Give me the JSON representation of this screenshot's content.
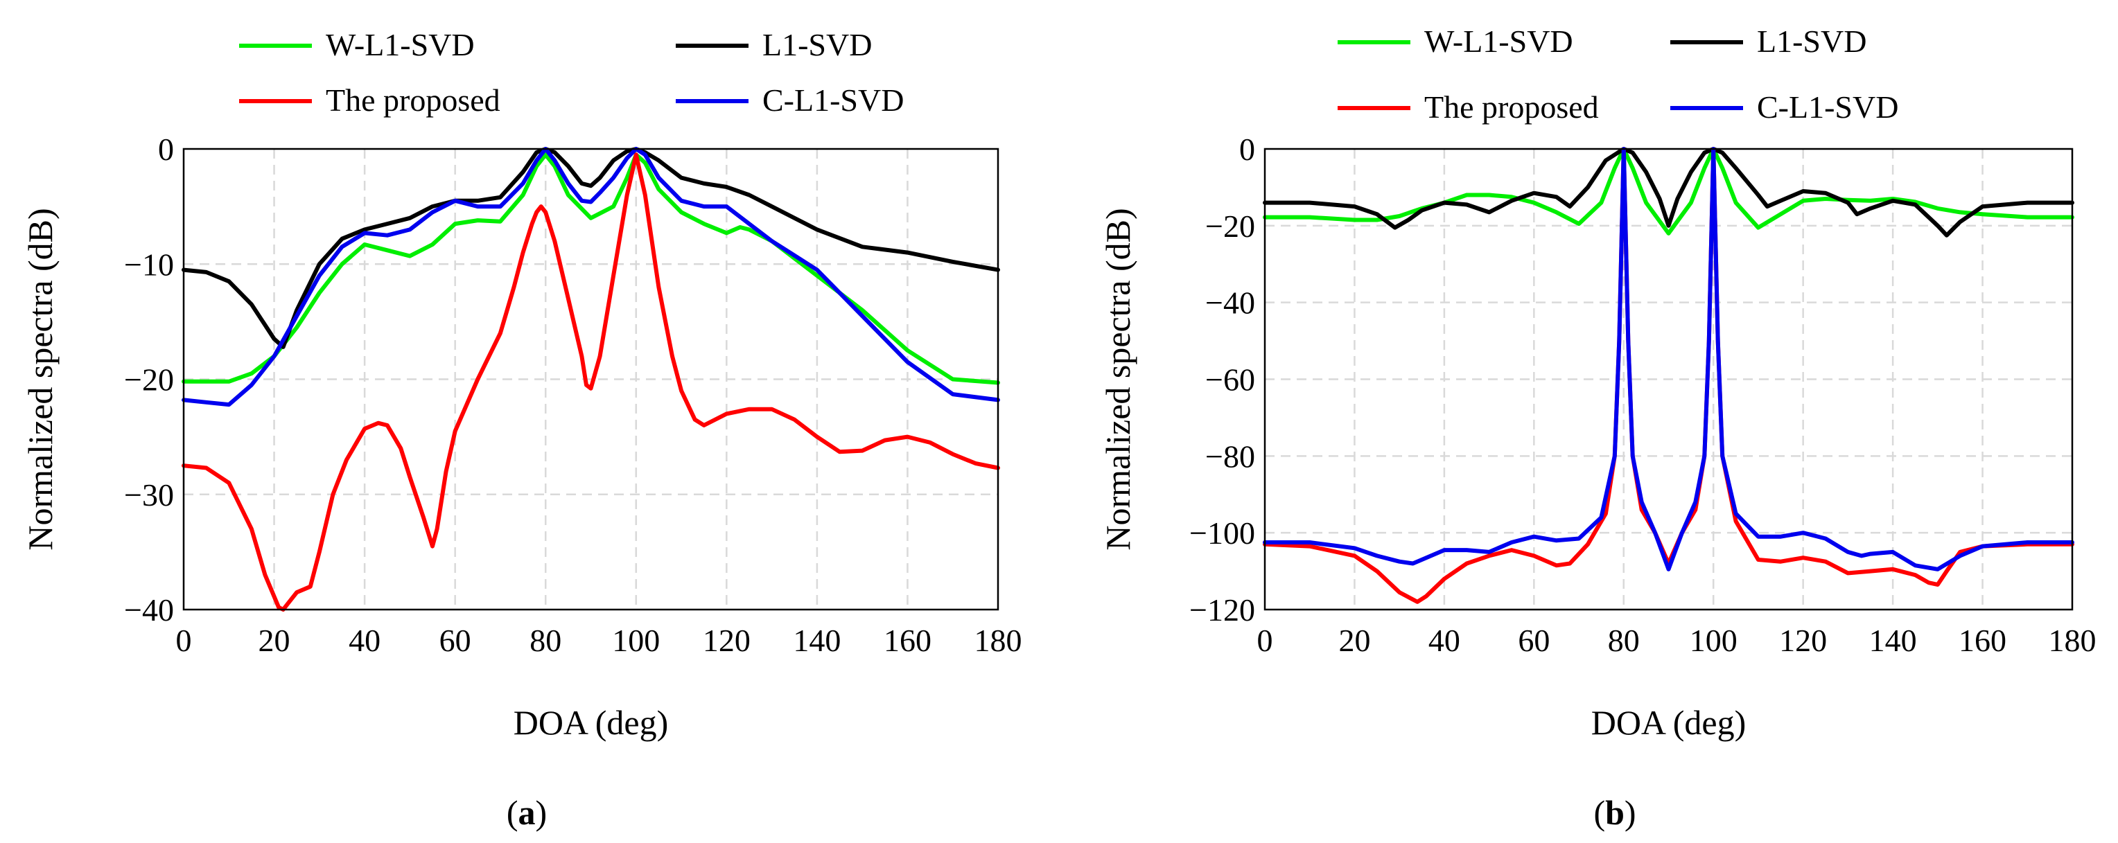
{
  "chart_data": [
    {
      "type": "line",
      "panel": "a",
      "caption_paren_open": "(",
      "caption_letter": "a",
      "caption_paren_close": ")",
      "xlabel": "DOA (deg)",
      "ylabel": "Normalized spectra (dB)",
      "xlim": [
        0,
        180
      ],
      "ylim": [
        -40,
        0
      ],
      "xticks": [
        0,
        20,
        40,
        60,
        80,
        100,
        120,
        140,
        160,
        180
      ],
      "yticks": [
        0,
        -10,
        -20,
        -30,
        -40
      ],
      "ytick_labels": [
        "0",
        "−10",
        "−20",
        "−30",
        "−40"
      ],
      "grid": true,
      "legend": "top, two columns",
      "series": [
        {
          "name": "W-L1-SVD",
          "color": "#00ee00",
          "x": [
            0,
            10,
            15,
            20,
            25,
            30,
            35,
            40,
            45,
            50,
            55,
            60,
            65,
            70,
            75,
            78,
            80,
            82,
            85,
            90,
            95,
            98,
            100,
            102,
            105,
            110,
            115,
            120,
            123,
            125,
            130,
            140,
            150,
            160,
            170,
            180
          ],
          "y": [
            -20.2,
            -20.2,
            -19.5,
            -18,
            -15.5,
            -12.5,
            -10,
            -8.3,
            -8.8,
            -9.3,
            -8.3,
            -6.5,
            -6.2,
            -6.3,
            -4,
            -1.5,
            -0.5,
            -1.5,
            -4,
            -6,
            -5,
            -2.5,
            -0.5,
            -1.2,
            -3.5,
            -5.5,
            -6.5,
            -7.3,
            -6.8,
            -7,
            -8,
            -11,
            -14,
            -17.5,
            -20,
            -20.3
          ]
        },
        {
          "name": "L1-SVD",
          "color": "#000000",
          "x": [
            0,
            5,
            10,
            15,
            20,
            22,
            25,
            30,
            35,
            40,
            45,
            50,
            55,
            60,
            65,
            70,
            75,
            78,
            80,
            82,
            85,
            88,
            90,
            92,
            95,
            98,
            100,
            102,
            105,
            110,
            115,
            120,
            125,
            130,
            140,
            150,
            160,
            170,
            180
          ],
          "y": [
            -10.5,
            -10.7,
            -11.5,
            -13.5,
            -16.5,
            -17.2,
            -14,
            -10,
            -7.8,
            -7,
            -6.5,
            -6,
            -5,
            -4.5,
            -4.5,
            -4.2,
            -2,
            -0.3,
            0,
            -0.3,
            -1.5,
            -3,
            -3.2,
            -2.5,
            -1,
            -0.2,
            0,
            -0.3,
            -1,
            -2.5,
            -3,
            -3.3,
            -4,
            -5,
            -7,
            -8.5,
            -9,
            -9.8,
            -10.5
          ]
        },
        {
          "name": "The proposed",
          "color": "#ff0000",
          "x": [
            0,
            5,
            10,
            15,
            18,
            21,
            22,
            23,
            25,
            28,
            30,
            33,
            36,
            40,
            43,
            45,
            48,
            50,
            53,
            55,
            56,
            58,
            60,
            65,
            70,
            73,
            75,
            77,
            78,
            79,
            80,
            82,
            85,
            88,
            89,
            90,
            92,
            95,
            98,
            100,
            102,
            105,
            108,
            110,
            113,
            115,
            120,
            125,
            130,
            135,
            140,
            145,
            150,
            155,
            160,
            165,
            170,
            175,
            180
          ],
          "y": [
            -27.5,
            -27.7,
            -29,
            -33,
            -37,
            -39.8,
            -40,
            -39.5,
            -38.5,
            -38,
            -35,
            -30,
            -27,
            -24.3,
            -23.8,
            -24,
            -26,
            -28.5,
            -32,
            -34.5,
            -33,
            -28,
            -24.5,
            -20,
            -16,
            -12,
            -9,
            -6.5,
            -5.5,
            -5,
            -5.5,
            -8,
            -13,
            -18,
            -20.5,
            -20.8,
            -18,
            -11,
            -4,
            -0.5,
            -4,
            -12,
            -18,
            -21,
            -23.5,
            -24,
            -23,
            -22.6,
            -22.6,
            -23.5,
            -25,
            -26.3,
            -26.2,
            -25.3,
            -25,
            -25.5,
            -26.5,
            -27.3,
            -27.7
          ]
        },
        {
          "name": "C-L1-SVD",
          "color": "#0000ee",
          "x": [
            0,
            5,
            10,
            15,
            20,
            25,
            30,
            35,
            40,
            45,
            50,
            55,
            60,
            65,
            70,
            75,
            78,
            80,
            82,
            85,
            88,
            90,
            92,
            95,
            98,
            100,
            102,
            105,
            110,
            115,
            120,
            125,
            130,
            140,
            150,
            160,
            170,
            180
          ],
          "y": [
            -21.8,
            -22,
            -22.2,
            -20.5,
            -18,
            -14.5,
            -11,
            -8.5,
            -7.3,
            -7.5,
            -7,
            -5.5,
            -4.5,
            -5,
            -5,
            -3,
            -1,
            0,
            -1,
            -3,
            -4.5,
            -4.6,
            -3.8,
            -2.5,
            -0.8,
            0,
            -0.5,
            -2.5,
            -4.5,
            -5,
            -5,
            -6.5,
            -8,
            -10.5,
            -14.5,
            -18.5,
            -21.3,
            -21.8
          ]
        }
      ]
    },
    {
      "type": "line",
      "panel": "b",
      "caption_paren_open": "(",
      "caption_letter": "b",
      "caption_paren_close": ")",
      "xlabel": "DOA (deg)",
      "ylabel": "Normalized spectra (dB)",
      "xlim": [
        0,
        180
      ],
      "ylim": [
        -120,
        0
      ],
      "xticks": [
        0,
        20,
        40,
        60,
        80,
        100,
        120,
        140,
        160,
        180
      ],
      "yticks": [
        0,
        -20,
        -40,
        -60,
        -80,
        -100,
        -120
      ],
      "ytick_labels": [
        "0",
        "−20",
        "−40",
        "−60",
        "−80",
        "−100",
        "−120"
      ],
      "grid": true,
      "legend": "top, two columns",
      "series": [
        {
          "name": "W-L1-SVD",
          "color": "#00ee00",
          "x": [
            0,
            10,
            20,
            25,
            30,
            35,
            40,
            45,
            50,
            55,
            60,
            65,
            70,
            75,
            78,
            80,
            82,
            85,
            90,
            95,
            98,
            100,
            102,
            105,
            110,
            115,
            120,
            125,
            130,
            135,
            140,
            145,
            150,
            155,
            160,
            170,
            180
          ],
          "y": [
            -17.8,
            -17.8,
            -18.5,
            -18.5,
            -17.5,
            -15.5,
            -14,
            -12,
            -12,
            -12.5,
            -14,
            -16.5,
            -19.5,
            -14,
            -5,
            0,
            -5,
            -14,
            -22,
            -14,
            -5,
            0,
            -5,
            -14,
            -20.5,
            -17,
            -13.5,
            -13,
            -13.3,
            -13.5,
            -13,
            -13.8,
            -15.5,
            -16.5,
            -17,
            -17.8,
            -17.8
          ]
        },
        {
          "name": "L1-SVD",
          "color": "#000000",
          "x": [
            0,
            10,
            20,
            25,
            29,
            32,
            35,
            40,
            45,
            50,
            55,
            60,
            65,
            68,
            72,
            76,
            80,
            82,
            85,
            88,
            90,
            92,
            95,
            98,
            100,
            102,
            105,
            110,
            112,
            115,
            120,
            125,
            130,
            132,
            135,
            140,
            145,
            150,
            152,
            155,
            160,
            170,
            180
          ],
          "y": [
            -14,
            -14,
            -15,
            -17,
            -20.5,
            -18.5,
            -16,
            -14,
            -14.5,
            -16.5,
            -13.5,
            -11.5,
            -12.5,
            -15,
            -10,
            -3,
            0,
            -1,
            -6,
            -13,
            -20,
            -13,
            -6,
            -1,
            0,
            -1,
            -5,
            -12,
            -15,
            -13.5,
            -11,
            -11.5,
            -14,
            -17,
            -15.5,
            -13.5,
            -14.5,
            -20,
            -22.5,
            -19,
            -15,
            -14,
            -14
          ]
        },
        {
          "name": "The proposed",
          "color": "#ff0000",
          "x": [
            0,
            10,
            20,
            25,
            30,
            34,
            36,
            40,
            45,
            50,
            55,
            60,
            65,
            68,
            72,
            76,
            78,
            79,
            80,
            81,
            82,
            84,
            87,
            90,
            93,
            96,
            98,
            99,
            100,
            101,
            102,
            105,
            110,
            115,
            120,
            125,
            130,
            135,
            140,
            145,
            148,
            150,
            152,
            155,
            160,
            170,
            180
          ],
          "y": [
            -103,
            -103.5,
            -106,
            -110,
            -115.5,
            -118,
            -116.5,
            -112,
            -108,
            -106,
            -104.5,
            -106,
            -108.5,
            -108,
            -103,
            -95,
            -80,
            -50,
            0,
            -50,
            -80,
            -94,
            -100,
            -108,
            -100,
            -94,
            -80,
            -50,
            0,
            -50,
            -80,
            -97,
            -107,
            -107.5,
            -106.5,
            -107.5,
            -110.5,
            -110,
            -109.5,
            -111,
            -113,
            -113.5,
            -110,
            -105,
            -103.5,
            -103,
            -103
          ]
        },
        {
          "name": "C-L1-SVD",
          "color": "#0000ee",
          "x": [
            0,
            10,
            20,
            25,
            30,
            33,
            35,
            40,
            45,
            50,
            55,
            60,
            65,
            70,
            75,
            78,
            79,
            80,
            81,
            82,
            84,
            87,
            90,
            93,
            96,
            98,
            99,
            100,
            101,
            102,
            105,
            110,
            115,
            120,
            125,
            130,
            133,
            135,
            140,
            145,
            150,
            155,
            160,
            170,
            180
          ],
          "y": [
            -102.5,
            -102.5,
            -104,
            -106,
            -107.5,
            -108,
            -107,
            -104.5,
            -104.5,
            -105,
            -102.5,
            -101,
            -102,
            -101.5,
            -96,
            -80,
            -50,
            0,
            -50,
            -80,
            -92,
            -100,
            -109.5,
            -100,
            -92,
            -80,
            -50,
            0,
            -50,
            -80,
            -95,
            -101,
            -101,
            -100,
            -101.5,
            -105,
            -106,
            -105.5,
            -105,
            -108.5,
            -109.5,
            -106,
            -103.5,
            -102.5,
            -102.5
          ]
        }
      ]
    }
  ]
}
